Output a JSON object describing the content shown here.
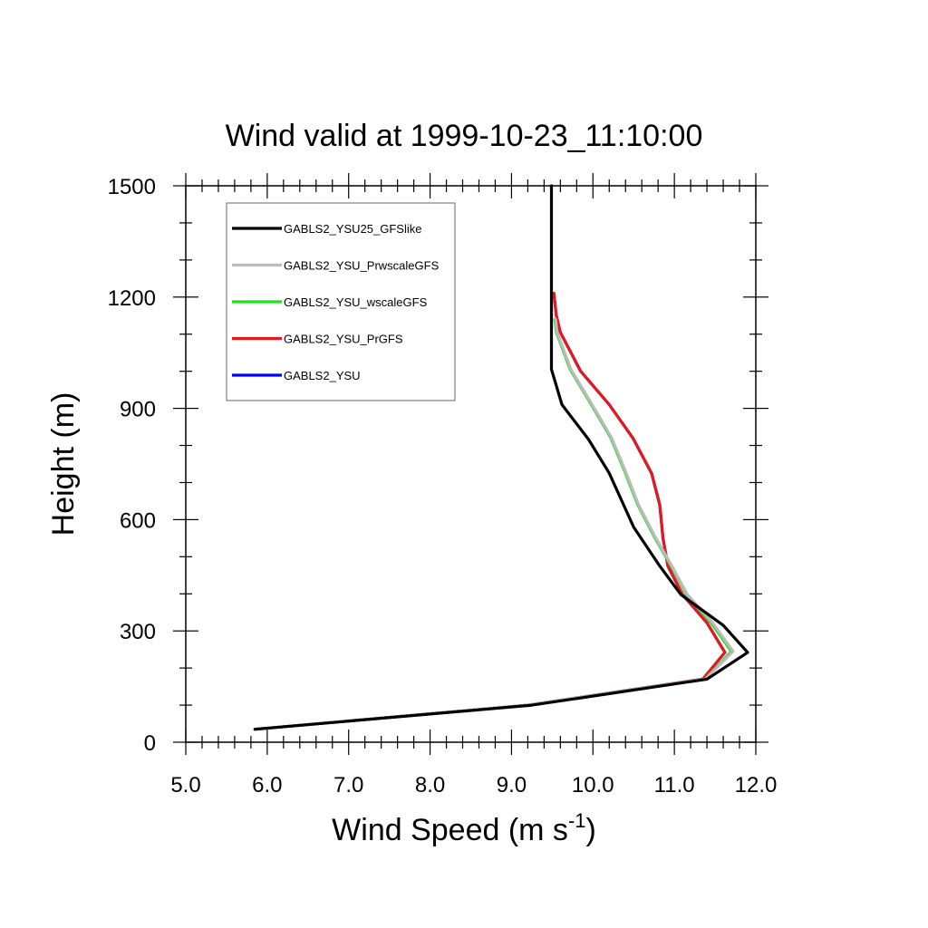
{
  "chart_data": {
    "type": "line",
    "title": "Wind valid at 1999-10-23_11:10:00",
    "xlabel": "Wind Speed (m s",
    "xlabel_sup": "-1",
    "xlabel_close": ")",
    "ylabel": "Height (m)",
    "xlim": [
      5.0,
      12.0
    ],
    "ylim": [
      0,
      1500
    ],
    "x_ticks": [
      5.0,
      6.0,
      7.0,
      8.0,
      9.0,
      10.0,
      11.0,
      12.0
    ],
    "x_tick_labels": [
      "5.0",
      "6.0",
      "7.0",
      "8.0",
      "9.0",
      "10.0",
      "11.0",
      "12.0"
    ],
    "y_ticks": [
      0,
      300,
      600,
      900,
      1200,
      1500
    ],
    "y_tick_labels": [
      "0",
      "300",
      "600",
      "900",
      "1200",
      "1500"
    ],
    "legend_position": "top-left",
    "series": [
      {
        "name": "GABLS2_YSU",
        "color": "#0000ff",
        "points": [
          [
            5.85,
            35
          ],
          [
            9.2,
            100
          ],
          [
            11.35,
            170
          ],
          [
            11.62,
            242
          ],
          [
            11.4,
            322
          ],
          [
            11.1,
            398
          ],
          [
            10.92,
            475
          ],
          [
            10.86,
            550
          ],
          [
            10.82,
            640
          ],
          [
            10.72,
            725
          ],
          [
            10.49,
            820
          ],
          [
            10.2,
            910
          ],
          [
            9.85,
            1000
          ],
          [
            9.6,
            1105
          ],
          [
            9.55,
            1150
          ],
          [
            9.52,
            1210
          ]
        ]
      },
      {
        "name": "GABLS2_YSU_PrGFS",
        "color": "#e31a1c",
        "points": [
          [
            5.85,
            35
          ],
          [
            9.2,
            100
          ],
          [
            11.35,
            170
          ],
          [
            11.62,
            242
          ],
          [
            11.4,
            322
          ],
          [
            11.1,
            398
          ],
          [
            10.92,
            475
          ],
          [
            10.86,
            550
          ],
          [
            10.82,
            640
          ],
          [
            10.72,
            725
          ],
          [
            10.49,
            820
          ],
          [
            10.2,
            910
          ],
          [
            9.85,
            1000
          ],
          [
            9.6,
            1105
          ],
          [
            9.55,
            1150
          ],
          [
            9.52,
            1210
          ]
        ]
      },
      {
        "name": "GABLS2_YSU_wscaleGFS",
        "color": "#22e022",
        "points": [
          [
            5.85,
            35
          ],
          [
            9.2,
            100
          ],
          [
            11.38,
            170
          ],
          [
            11.7,
            245
          ],
          [
            11.45,
            322
          ],
          [
            11.15,
            398
          ],
          [
            10.96,
            475
          ],
          [
            10.75,
            555
          ],
          [
            10.55,
            640
          ],
          [
            10.4,
            725
          ],
          [
            10.22,
            820
          ],
          [
            9.98,
            910
          ],
          [
            9.72,
            1005
          ],
          [
            9.55,
            1105
          ],
          [
            9.53,
            1140
          ]
        ]
      },
      {
        "name": "GABLS2_YSU_PrwscaleGFS",
        "color": "#bbbbbb",
        "points": [
          [
            5.85,
            35
          ],
          [
            9.2,
            100
          ],
          [
            11.38,
            170
          ],
          [
            11.72,
            245
          ],
          [
            11.47,
            322
          ],
          [
            11.16,
            398
          ],
          [
            10.97,
            475
          ],
          [
            10.76,
            555
          ],
          [
            10.56,
            640
          ],
          [
            10.41,
            725
          ],
          [
            10.23,
            820
          ],
          [
            9.99,
            910
          ],
          [
            9.73,
            1005
          ],
          [
            9.56,
            1105
          ],
          [
            9.54,
            1140
          ]
        ]
      },
      {
        "name": "GABLS2_YSU25_GFSlike",
        "color": "#000000",
        "points": [
          [
            5.85,
            35
          ],
          [
            9.25,
            100
          ],
          [
            11.4,
            170
          ],
          [
            11.9,
            242
          ],
          [
            11.6,
            315
          ],
          [
            11.08,
            398
          ],
          [
            10.82,
            475
          ],
          [
            10.5,
            580
          ],
          [
            10.2,
            725
          ],
          [
            9.95,
            815
          ],
          [
            9.62,
            910
          ],
          [
            9.49,
            1005
          ],
          [
            9.49,
            1100
          ],
          [
            9.49,
            1200
          ],
          [
            9.49,
            1300
          ],
          [
            9.49,
            1500
          ]
        ]
      }
    ],
    "legend_order": [
      "GABLS2_YSU25_GFSlike",
      "GABLS2_YSU_PrwscaleGFS",
      "GABLS2_YSU_wscaleGFS",
      "GABLS2_YSU_PrGFS",
      "GABLS2_YSU"
    ]
  }
}
